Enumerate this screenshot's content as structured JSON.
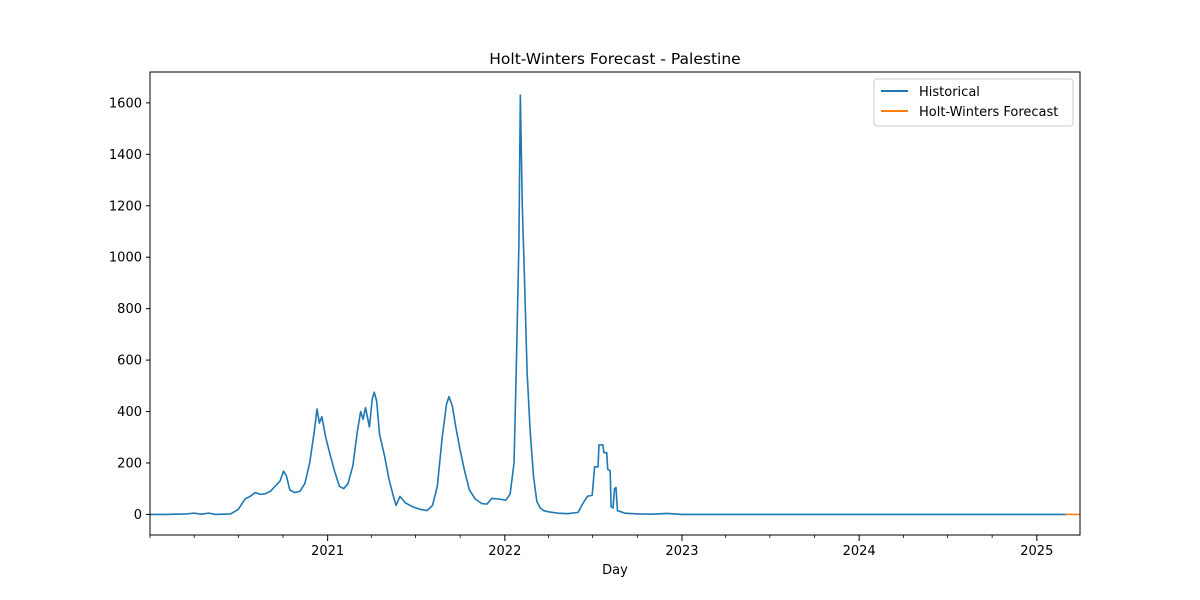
{
  "chart_data": {
    "type": "line",
    "title": "Holt-Winters Forecast - Palestine",
    "xlabel": "Day",
    "ylabel": "",
    "xlim": [
      "2020-01-01",
      "2025-03-31"
    ],
    "ylim": [
      -80,
      1720
    ],
    "x_ticks": [
      {
        "label": "2021",
        "x": "2021-01-01"
      },
      {
        "label": "2022",
        "x": "2022-01-01"
      },
      {
        "label": "2023",
        "x": "2023-01-01"
      },
      {
        "label": "2024",
        "x": "2024-01-01"
      },
      {
        "label": "2025",
        "x": "2025-01-01"
      }
    ],
    "y_ticks": [
      0,
      200,
      400,
      600,
      800,
      1000,
      1200,
      1400,
      1600
    ],
    "legend": "top-right",
    "grid": false,
    "series": [
      {
        "name": "Historical",
        "color": "#1f77b4",
        "points": [
          [
            "2020-01-01",
            0
          ],
          [
            "2020-02-01",
            0
          ],
          [
            "2020-03-15",
            2
          ],
          [
            "2020-04-01",
            5
          ],
          [
            "2020-04-15",
            1
          ],
          [
            "2020-05-01",
            5
          ],
          [
            "2020-05-15",
            0
          ],
          [
            "2020-06-15",
            2
          ],
          [
            "2020-07-01",
            20
          ],
          [
            "2020-07-15",
            60
          ],
          [
            "2020-07-25",
            70
          ],
          [
            "2020-08-05",
            85
          ],
          [
            "2020-08-15",
            78
          ],
          [
            "2020-08-25",
            80
          ],
          [
            "2020-09-05",
            90
          ],
          [
            "2020-09-15",
            110
          ],
          [
            "2020-09-25",
            130
          ],
          [
            "2020-10-02",
            168
          ],
          [
            "2020-10-08",
            150
          ],
          [
            "2020-10-15",
            95
          ],
          [
            "2020-10-25",
            85
          ],
          [
            "2020-11-05",
            90
          ],
          [
            "2020-11-15",
            120
          ],
          [
            "2020-11-25",
            200
          ],
          [
            "2020-12-05",
            330
          ],
          [
            "2020-12-10",
            410
          ],
          [
            "2020-12-15",
            355
          ],
          [
            "2020-12-20",
            380
          ],
          [
            "2020-12-28",
            300
          ],
          [
            "2021-01-05",
            240
          ],
          [
            "2021-01-15",
            170
          ],
          [
            "2021-01-25",
            110
          ],
          [
            "2021-02-03",
            100
          ],
          [
            "2021-02-12",
            120
          ],
          [
            "2021-02-22",
            190
          ],
          [
            "2021-03-03",
            320
          ],
          [
            "2021-03-10",
            400
          ],
          [
            "2021-03-15",
            370
          ],
          [
            "2021-03-20",
            415
          ],
          [
            "2021-03-28",
            340
          ],
          [
            "2021-04-03",
            450
          ],
          [
            "2021-04-07",
            475
          ],
          [
            "2021-04-12",
            440
          ],
          [
            "2021-04-18",
            310
          ],
          [
            "2021-04-28",
            230
          ],
          [
            "2021-05-07",
            140
          ],
          [
            "2021-05-15",
            80
          ],
          [
            "2021-05-22",
            35
          ],
          [
            "2021-05-30",
            70
          ],
          [
            "2021-06-10",
            45
          ],
          [
            "2021-06-25",
            30
          ],
          [
            "2021-07-10",
            20
          ],
          [
            "2021-07-25",
            15
          ],
          [
            "2021-08-05",
            35
          ],
          [
            "2021-08-15",
            110
          ],
          [
            "2021-08-25",
            300
          ],
          [
            "2021-09-03",
            430
          ],
          [
            "2021-09-08",
            458
          ],
          [
            "2021-09-15",
            420
          ],
          [
            "2021-09-22",
            340
          ],
          [
            "2021-10-01",
            250
          ],
          [
            "2021-10-10",
            170
          ],
          [
            "2021-10-20",
            95
          ],
          [
            "2021-11-01",
            60
          ],
          [
            "2021-11-15",
            42
          ],
          [
            "2021-11-25",
            40
          ],
          [
            "2021-12-05",
            62
          ],
          [
            "2021-12-20",
            60
          ],
          [
            "2022-01-03",
            55
          ],
          [
            "2022-01-12",
            80
          ],
          [
            "2022-01-20",
            200
          ],
          [
            "2022-01-25",
            600
          ],
          [
            "2022-01-30",
            1050
          ],
          [
            "2022-02-02",
            1630
          ],
          [
            "2022-02-06",
            1200
          ],
          [
            "2022-02-10",
            950
          ],
          [
            "2022-02-16",
            550
          ],
          [
            "2022-02-22",
            330
          ],
          [
            "2022-03-01",
            150
          ],
          [
            "2022-03-08",
            50
          ],
          [
            "2022-03-15",
            25
          ],
          [
            "2022-03-22",
            15
          ],
          [
            "2022-04-01",
            10
          ],
          [
            "2022-04-20",
            5
          ],
          [
            "2022-05-10",
            3
          ],
          [
            "2022-06-01",
            8
          ],
          [
            "2022-06-10",
            40
          ],
          [
            "2022-06-20",
            70
          ],
          [
            "2022-06-30",
            75
          ],
          [
            "2022-07-05",
            185
          ],
          [
            "2022-07-12",
            185
          ],
          [
            "2022-07-14",
            270
          ],
          [
            "2022-07-22",
            270
          ],
          [
            "2022-07-24",
            240
          ],
          [
            "2022-07-30",
            240
          ],
          [
            "2022-08-01",
            175
          ],
          [
            "2022-08-06",
            170
          ],
          [
            "2022-08-08",
            30
          ],
          [
            "2022-08-12",
            25
          ],
          [
            "2022-08-15",
            100
          ],
          [
            "2022-08-18",
            105
          ],
          [
            "2022-08-21",
            15
          ],
          [
            "2022-09-05",
            5
          ],
          [
            "2022-10-01",
            2
          ],
          [
            "2022-11-01",
            1
          ],
          [
            "2022-12-01",
            4
          ],
          [
            "2023-01-01",
            0
          ],
          [
            "2024-01-01",
            0
          ],
          [
            "2025-03-01",
            0
          ]
        ]
      },
      {
        "name": "Holt-Winters Forecast",
        "color": "#ff7f0e",
        "points": [
          [
            "2025-03-01",
            0
          ],
          [
            "2025-03-31",
            0
          ]
        ]
      }
    ]
  }
}
